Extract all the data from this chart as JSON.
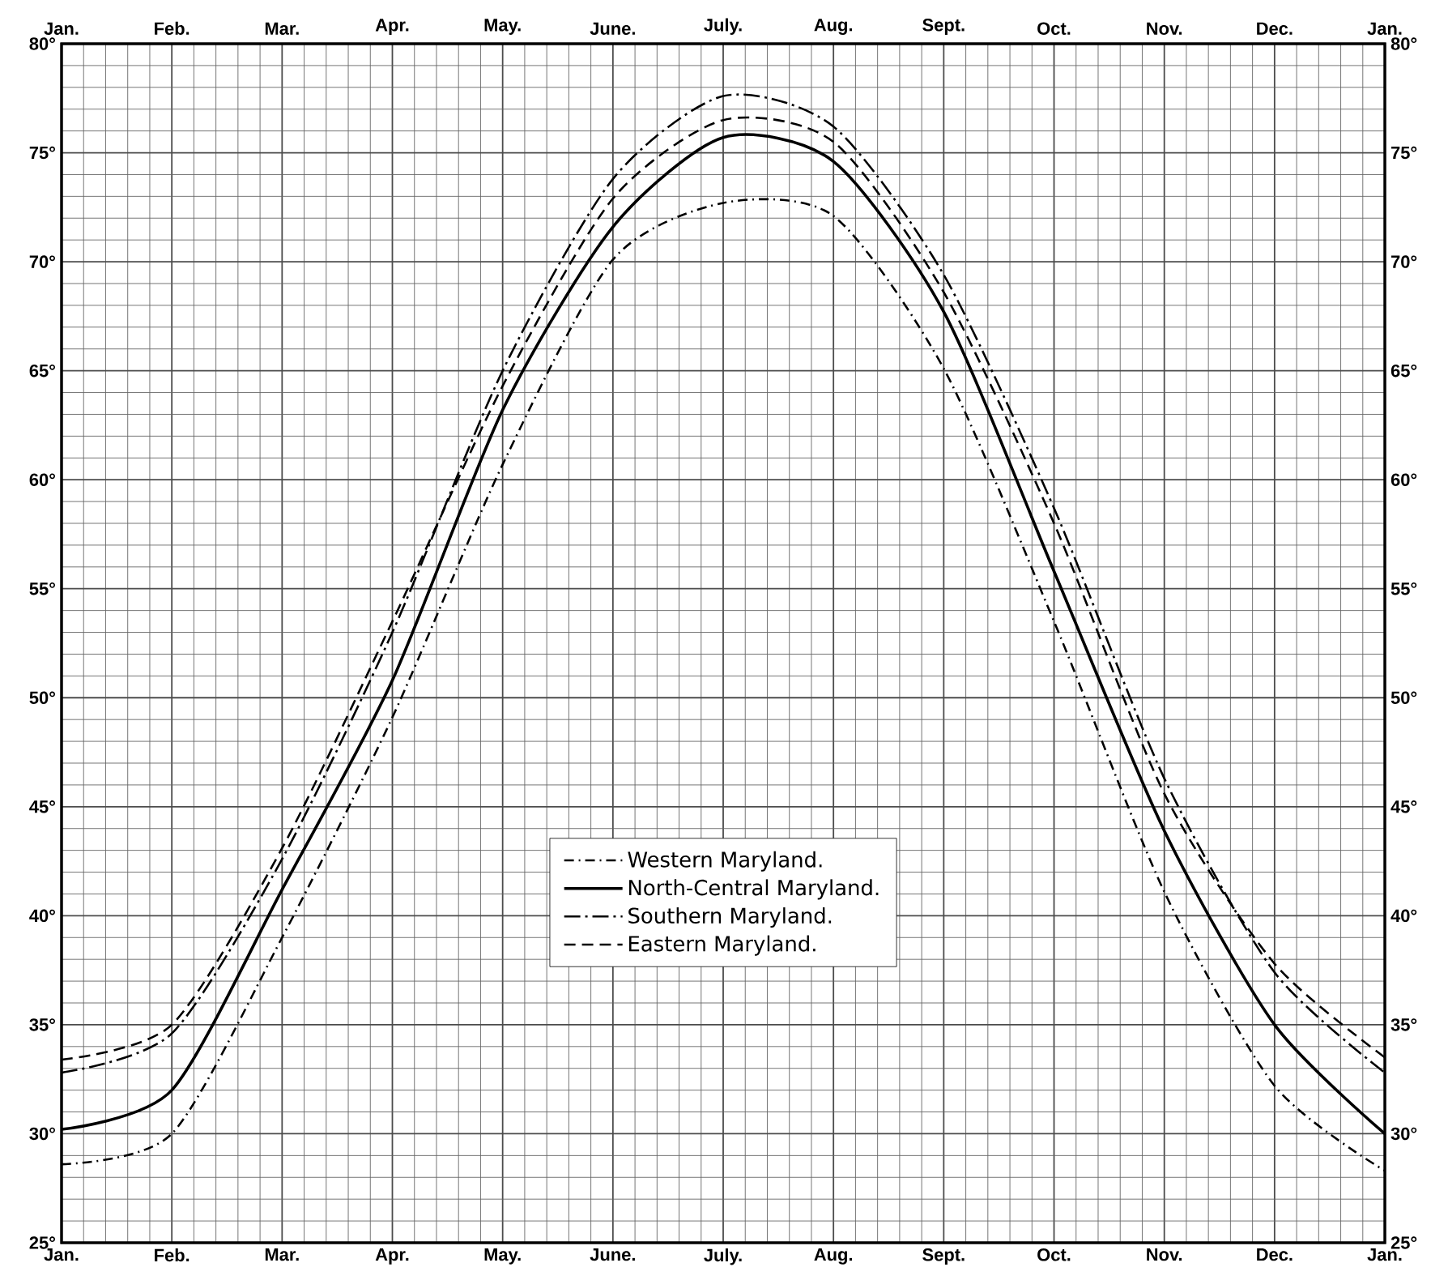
{
  "chart_data": {
    "type": "line",
    "categories": [
      "Jan.",
      "Feb.",
      "Mar.",
      "Apr.",
      "May.",
      "June.",
      "July.",
      "Aug.",
      "Sept.",
      "Oct.",
      "Nov.",
      "Dec.",
      "Jan."
    ],
    "ylim": [
      25,
      80
    ],
    "yticks": [
      {
        "value": 25,
        "label": "25°"
      },
      {
        "value": 30,
        "label": "30°"
      },
      {
        "value": 35,
        "label": "35°"
      },
      {
        "value": 40,
        "label": "40°"
      },
      {
        "value": 45,
        "label": "45°"
      },
      {
        "value": 50,
        "label": "50°"
      },
      {
        "value": 55,
        "label": "55°"
      },
      {
        "value": 60,
        "label": "60°"
      },
      {
        "value": 65,
        "label": "65°"
      },
      {
        "value": 70,
        "label": "70°"
      },
      {
        "value": 75,
        "label": "75°"
      },
      {
        "value": 80,
        "label": "80°"
      }
    ],
    "y2lim": [
      25,
      80
    ],
    "y2ticks": [
      {
        "value": 25,
        "label": "25°"
      },
      {
        "value": 30,
        "label": "30°"
      },
      {
        "value": 35,
        "label": "35°"
      },
      {
        "value": 40,
        "label": "40°"
      },
      {
        "value": 45,
        "label": "45°"
      },
      {
        "value": 50,
        "label": "50°"
      },
      {
        "value": 55,
        "label": "55°"
      },
      {
        "value": 60,
        "label": "60°"
      },
      {
        "value": 65,
        "label": "65°"
      },
      {
        "value": 70,
        "label": "70°"
      },
      {
        "value": 75,
        "label": "75°"
      },
      {
        "value": 80,
        "label": "80°"
      }
    ],
    "grid": true,
    "legend": "bottom",
    "series": [
      {
        "name": "Western Maryland.",
        "color": "#000000",
        "line_style": "dashdot",
        "values": [
          28.6,
          30.0,
          39.0,
          49.1,
          60.7,
          70.1,
          72.7,
          72.1,
          65.1,
          53.5,
          41.1,
          32.2,
          28.3
        ]
      },
      {
        "name": "North-Central Maryland.",
        "color": "#000000",
        "line_style": "solid",
        "values": [
          30.2,
          32.0,
          41.2,
          50.8,
          63.2,
          71.6,
          75.7,
          74.6,
          67.7,
          55.8,
          43.9,
          35.0,
          30.0
        ]
      },
      {
        "name": "Southern Maryland.",
        "color": "#000000",
        "line_style": "longdashdot",
        "values": [
          32.8,
          34.6,
          42.6,
          53.0,
          65.0,
          73.8,
          77.6,
          76.2,
          69.4,
          58.7,
          46.3,
          37.4,
          32.8
        ]
      },
      {
        "name": "Eastern Maryland.",
        "color": "#000000",
        "line_style": "dashed",
        "values": [
          33.4,
          35.0,
          43.1,
          53.5,
          64.3,
          72.9,
          76.5,
          75.5,
          68.6,
          58.0,
          45.6,
          37.8,
          33.5
        ]
      }
    ]
  }
}
